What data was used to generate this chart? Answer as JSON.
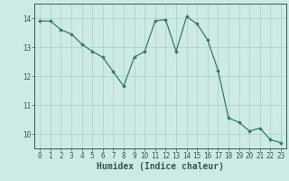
{
  "x": [
    0,
    1,
    2,
    3,
    4,
    5,
    6,
    7,
    8,
    9,
    10,
    11,
    12,
    13,
    14,
    15,
    16,
    17,
    18,
    19,
    20,
    21,
    22,
    23
  ],
  "y": [
    13.9,
    13.9,
    13.6,
    13.45,
    13.1,
    12.85,
    12.65,
    12.15,
    11.65,
    12.65,
    12.85,
    13.9,
    13.95,
    12.85,
    14.05,
    13.8,
    13.25,
    12.2,
    10.55,
    10.4,
    10.1,
    10.2,
    9.8,
    9.7
  ],
  "line_color": "#2e7d6e",
  "marker": "D",
  "marker_size": 1.8,
  "linewidth": 0.9,
  "xlabel": "Humidex (Indice chaleur)",
  "xlim": [
    -0.5,
    23.5
  ],
  "ylim": [
    9.5,
    14.5
  ],
  "yticks": [
    10,
    11,
    12,
    13,
    14
  ],
  "xticks": [
    0,
    1,
    2,
    3,
    4,
    5,
    6,
    7,
    8,
    9,
    10,
    11,
    12,
    13,
    14,
    15,
    16,
    17,
    18,
    19,
    20,
    21,
    22,
    23
  ],
  "bg_color": "#ceeae4",
  "grid_color": "#aed4cc",
  "tick_label_fontsize": 5.5,
  "xlabel_fontsize": 7.0,
  "text_color": "#2e5c52"
}
